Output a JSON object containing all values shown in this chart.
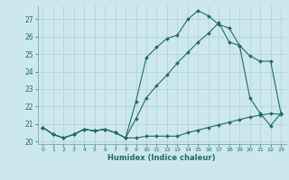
{
  "xlabel": "Humidex (Indice chaleur)",
  "background_color": "#cde8ec",
  "grid_color": "#aecfd4",
  "line_color": "#1f6b65",
  "xlim": [
    -0.5,
    23.5
  ],
  "ylim": [
    19.85,
    27.8
  ],
  "yticks": [
    20,
    21,
    22,
    23,
    24,
    25,
    26,
    27
  ],
  "xticks": [
    0,
    1,
    2,
    3,
    4,
    5,
    6,
    7,
    8,
    9,
    10,
    11,
    12,
    13,
    14,
    15,
    16,
    17,
    18,
    19,
    20,
    21,
    22,
    23
  ],
  "line1_x": [
    0,
    1,
    2,
    3,
    4,
    5,
    6,
    7,
    8,
    9,
    10,
    11,
    12,
    13,
    14,
    15,
    16,
    17,
    18,
    19,
    20,
    21,
    22,
    23
  ],
  "line1_y": [
    20.8,
    20.4,
    20.2,
    20.4,
    20.7,
    20.6,
    20.7,
    20.5,
    20.2,
    20.2,
    20.3,
    20.3,
    20.3,
    20.3,
    20.5,
    20.65,
    20.8,
    20.95,
    21.1,
    21.25,
    21.4,
    21.5,
    21.6,
    21.55
  ],
  "line2_x": [
    0,
    1,
    2,
    3,
    4,
    5,
    6,
    7,
    8,
    9,
    10,
    11,
    12,
    13,
    14,
    15,
    16,
    17,
    18,
    19,
    20,
    21,
    22,
    23
  ],
  "line2_y": [
    20.8,
    20.4,
    20.2,
    20.4,
    20.7,
    20.6,
    20.7,
    20.5,
    20.2,
    22.3,
    24.8,
    25.4,
    25.9,
    26.1,
    27.0,
    27.5,
    27.2,
    26.7,
    26.5,
    25.5,
    22.5,
    21.6,
    20.9,
    21.6
  ],
  "line3_x": [
    0,
    1,
    2,
    3,
    4,
    5,
    6,
    7,
    8,
    9,
    10,
    11,
    12,
    13,
    14,
    15,
    16,
    17,
    18,
    19,
    20,
    21,
    22,
    23
  ],
  "line3_y": [
    20.8,
    20.4,
    20.2,
    20.4,
    20.7,
    20.6,
    20.7,
    20.5,
    20.2,
    21.3,
    22.5,
    23.2,
    23.8,
    24.5,
    25.1,
    25.7,
    26.2,
    26.8,
    25.7,
    25.5,
    24.9,
    24.6,
    24.6,
    21.6
  ]
}
